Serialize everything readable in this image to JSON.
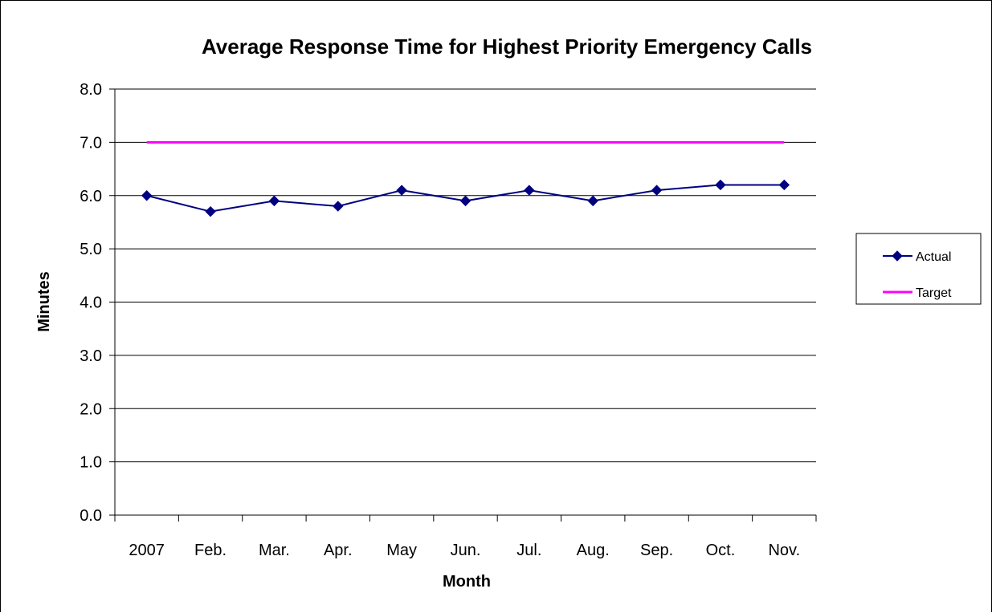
{
  "chart_data": {
    "type": "line",
    "title": "Average Response Time for Highest Priority Emergency Calls",
    "xlabel": "Month",
    "ylabel": "Minutes",
    "categories": [
      "2007",
      "Feb.",
      "Mar.",
      "Apr.",
      "May",
      "Jun.",
      "Jul.",
      "Aug.",
      "Sep.",
      "Oct.",
      "Nov."
    ],
    "series": [
      {
        "name": "Actual",
        "values": [
          6.0,
          5.7,
          5.9,
          5.8,
          6.1,
          5.9,
          6.1,
          5.9,
          6.1,
          6.2,
          6.2
        ],
        "color": "#000080",
        "marker": "diamond"
      },
      {
        "name": "Target",
        "values": [
          7.0,
          7.0,
          7.0,
          7.0,
          7.0,
          7.0,
          7.0,
          7.0,
          7.0,
          7.0,
          7.0
        ],
        "color": "#ff00ff",
        "marker": "none"
      }
    ],
    "ylim": [
      0,
      8
    ],
    "ytick_step": 1,
    "ytick_labels": [
      "0.0",
      "1.0",
      "2.0",
      "3.0",
      "4.0",
      "5.0",
      "6.0",
      "7.0",
      "8.0"
    ],
    "grid": true,
    "legend_position": "right"
  }
}
